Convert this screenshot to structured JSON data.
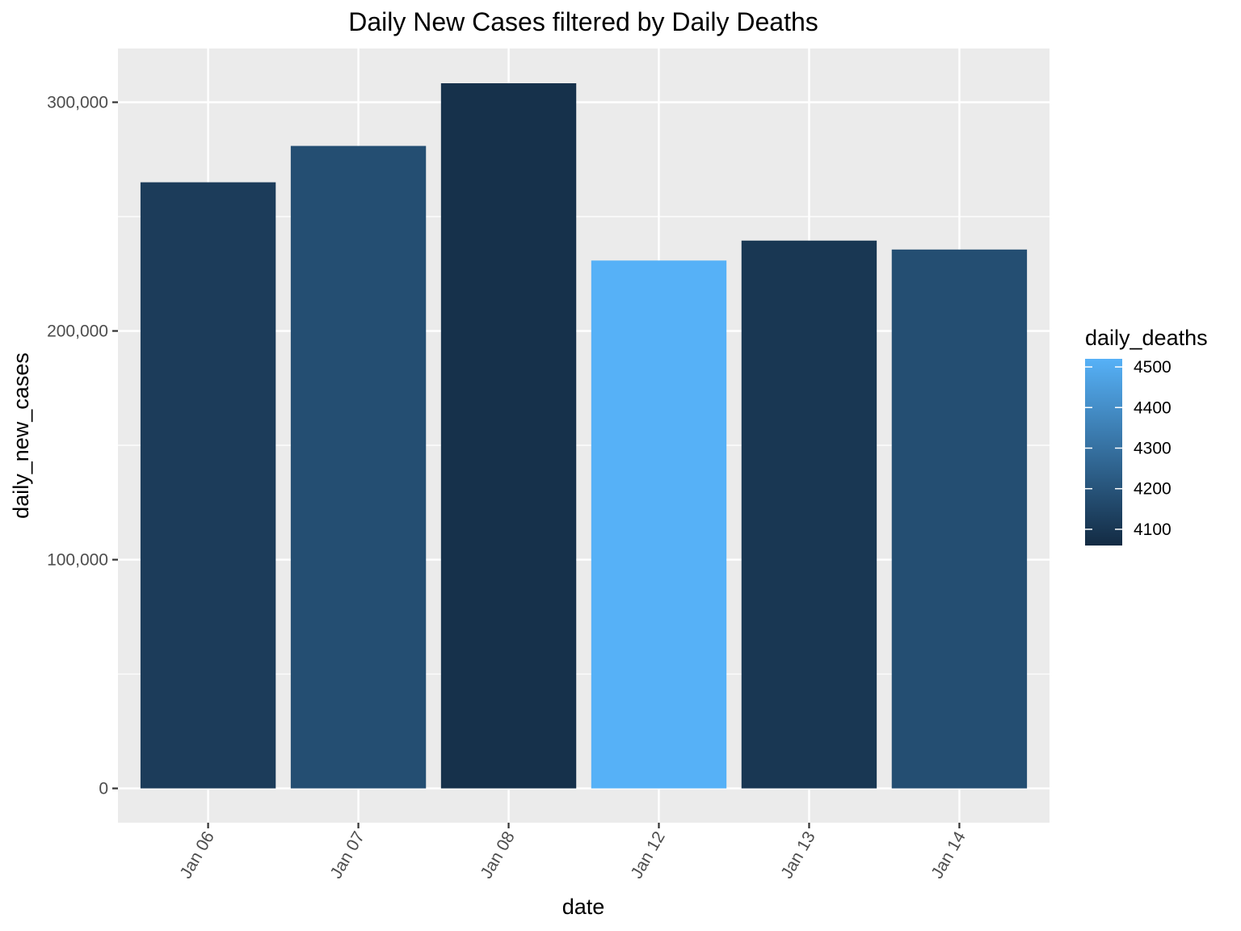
{
  "chart_data": {
    "type": "bar",
    "title": "Daily New Cases filtered by Daily Deaths",
    "xlabel": "date",
    "ylabel": "daily_new_cases",
    "categories": [
      "Jan 06",
      "Jan 07",
      "Jan 08",
      "Jan 12",
      "Jan 13",
      "Jan 14"
    ],
    "values": [
      265000,
      280900,
      308300,
      230800,
      239500,
      235600
    ],
    "daily_deaths": [
      4120,
      4180,
      4080,
      4520,
      4100,
      4180
    ],
    "ylim": [
      -15000,
      323500
    ],
    "y_ticks": [
      0,
      100000,
      200000,
      300000
    ],
    "y_tick_labels": [
      "0",
      "100,000",
      "200,000",
      "300,000"
    ],
    "grid": true,
    "legend": {
      "title": "daily_deaths",
      "placement": "right",
      "range": [
        4060,
        4520
      ],
      "ticks": [
        4100,
        4200,
        4300,
        4400,
        4500
      ],
      "tick_labels": [
        "4100",
        "4200",
        "4300",
        "4400",
        "4500"
      ],
      "color_low": "#132b43",
      "color_high": "#56b1f7"
    },
    "colors": {
      "panel_background": "#ebebeb",
      "grid_line": "#ffffff",
      "tick_color": "#333333"
    }
  }
}
